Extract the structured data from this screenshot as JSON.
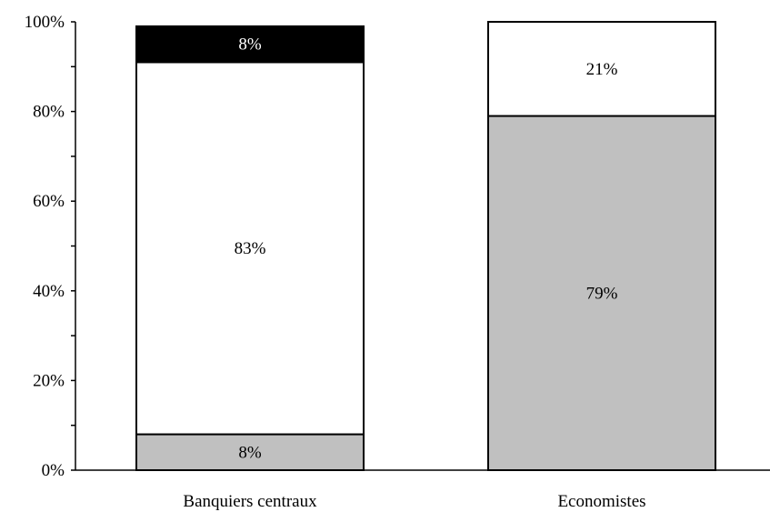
{
  "chart_data": {
    "type": "bar",
    "stacked": true,
    "categories": [
      "Banquiers centraux",
      "Economistes"
    ],
    "series": [
      {
        "values": [
          8,
          79
        ],
        "color": "#c0c0c0",
        "labels": [
          "8%",
          "79%"
        ]
      },
      {
        "values": [
          83,
          21
        ],
        "color": "#ffffff",
        "labels": [
          "83%",
          "21%"
        ]
      },
      {
        "values": [
          8,
          0
        ],
        "color": "#000000",
        "labels": [
          "8%",
          ""
        ]
      }
    ],
    "y_ticks": [
      "0%",
      "20%",
      "40%",
      "60%",
      "80%",
      "100%"
    ],
    "ylim": [
      0,
      100
    ],
    "title": "",
    "xlabel": "",
    "ylabel": "",
    "grid": false,
    "legend": "none"
  }
}
